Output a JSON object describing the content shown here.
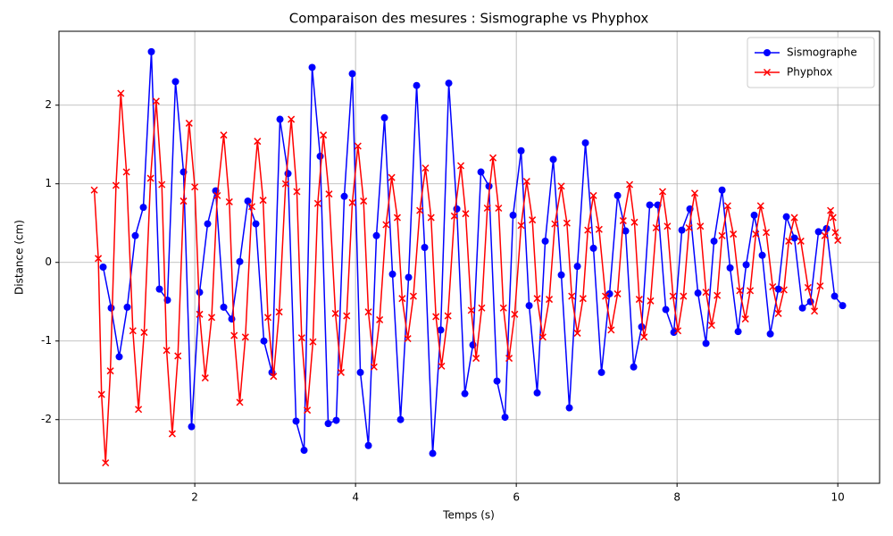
{
  "chart_data": {
    "type": "line",
    "title": "Comparaison des mesures : Sismographe vs Phyphox",
    "x_label": "Temps (s)",
    "y_label": "Distance (cm)",
    "xlim": [
      0.31,
      10.52
    ],
    "ylim": [
      -2.81,
      2.94
    ],
    "xticks": [
      2,
      4,
      6,
      8,
      10
    ],
    "yticks": [
      -2,
      -1,
      0,
      1,
      2
    ],
    "grid": true,
    "legend": "upper right",
    "series": [
      {
        "name": "Sismographe",
        "color": "#0000ff",
        "marker": "o",
        "x": [
          0.86,
          0.96,
          1.06,
          1.16,
          1.26,
          1.36,
          1.46,
          1.56,
          1.66,
          1.76,
          1.86,
          1.96,
          2.06,
          2.16,
          2.26,
          2.36,
          2.46,
          2.56,
          2.66,
          2.76,
          2.86,
          2.96,
          3.06,
          3.16,
          3.26,
          3.36,
          3.46,
          3.56,
          3.66,
          3.76,
          3.86,
          3.96,
          4.06,
          4.16,
          4.26,
          4.36,
          4.46,
          4.56,
          4.66,
          4.76,
          4.86,
          4.96,
          5.06,
          5.16,
          5.26,
          5.36,
          5.46,
          5.56,
          5.66,
          5.76,
          5.86,
          5.96,
          6.06,
          6.16,
          6.26,
          6.36,
          6.46,
          6.56,
          6.66,
          6.76,
          6.86,
          6.96,
          7.06,
          7.16,
          7.26,
          7.36,
          7.46,
          7.56,
          7.66,
          7.76,
          7.86,
          7.96,
          8.06,
          8.16,
          8.26,
          8.36,
          8.46,
          8.56,
          8.66,
          8.76,
          8.86,
          8.96,
          9.06,
          9.16,
          9.26,
          9.36,
          9.46,
          9.56,
          9.66,
          9.76,
          9.86,
          9.96,
          10.06
        ],
        "values": [
          -0.06,
          -0.58,
          -1.2,
          -0.57,
          0.34,
          0.7,
          2.68,
          -0.34,
          -0.48,
          2.3,
          1.15,
          -2.09,
          -0.38,
          0.49,
          0.91,
          -0.57,
          -0.72,
          0.01,
          0.78,
          0.49,
          -1.0,
          -1.4,
          1.82,
          1.13,
          -2.02,
          -2.39,
          2.48,
          1.35,
          -2.05,
          -2.01,
          0.84,
          2.4,
          -1.4,
          -2.33,
          0.34,
          1.84,
          -0.15,
          -2.0,
          -0.19,
          2.25,
          0.19,
          -2.43,
          -0.86,
          2.28,
          0.68,
          -1.67,
          -1.05,
          1.15,
          0.97,
          -1.51,
          -1.97,
          0.6,
          1.42,
          -0.55,
          -1.66,
          0.27,
          1.31,
          -0.16,
          -1.85,
          -0.05,
          1.52,
          0.18,
          -1.4,
          -0.4,
          0.85,
          0.4,
          -1.33,
          -0.82,
          0.73,
          0.73,
          -0.6,
          -0.89,
          0.41,
          0.68,
          -0.39,
          -1.03,
          0.27,
          0.92,
          -0.07,
          -0.88,
          -0.03,
          0.6,
          0.09,
          -0.91,
          -0.34,
          0.58,
          0.31,
          -0.58,
          -0.5,
          0.39,
          0.43,
          -0.43,
          -0.55
        ]
      },
      {
        "name": "Phyphox",
        "color": "#ff0000",
        "marker": "x",
        "x": [
          0.75,
          0.8,
          0.84,
          0.89,
          0.95,
          1.02,
          1.08,
          1.15,
          1.23,
          1.3,
          1.37,
          1.45,
          1.52,
          1.59,
          1.65,
          1.72,
          1.79,
          1.86,
          1.93,
          2.0,
          2.06,
          2.13,
          2.21,
          2.28,
          2.36,
          2.43,
          2.49,
          2.56,
          2.63,
          2.71,
          2.78,
          2.85,
          2.91,
          2.98,
          3.05,
          3.13,
          3.2,
          3.27,
          3.33,
          3.4,
          3.47,
          3.53,
          3.6,
          3.67,
          3.75,
          3.82,
          3.89,
          3.96,
          4.03,
          4.1,
          4.16,
          4.23,
          4.3,
          4.38,
          4.45,
          4.52,
          4.58,
          4.65,
          4.72,
          4.8,
          4.87,
          4.94,
          5.0,
          5.07,
          5.15,
          5.23,
          5.31,
          5.37,
          5.44,
          5.5,
          5.57,
          5.64,
          5.71,
          5.78,
          5.84,
          5.91,
          5.98,
          6.06,
          6.13,
          6.2,
          6.26,
          6.33,
          6.41,
          6.48,
          6.56,
          6.63,
          6.69,
          6.76,
          6.83,
          6.89,
          6.96,
          7.03,
          7.11,
          7.18,
          7.26,
          7.33,
          7.41,
          7.47,
          7.53,
          7.59,
          7.67,
          7.74,
          7.82,
          7.88,
          7.95,
          8.01,
          8.08,
          8.15,
          8.22,
          8.29,
          8.36,
          8.43,
          8.5,
          8.56,
          8.63,
          8.7,
          8.78,
          8.85,
          8.91,
          8.98,
          9.04,
          9.11,
          9.19,
          9.26,
          9.33,
          9.39,
          9.46,
          9.54,
          9.63,
          9.71,
          9.78,
          9.84,
          9.91,
          9.94,
          9.97,
          10.0
        ],
        "values": [
          0.92,
          0.05,
          -1.68,
          -2.55,
          -1.38,
          0.98,
          2.15,
          1.15,
          -0.87,
          -1.87,
          -0.89,
          1.07,
          2.05,
          0.99,
          -1.12,
          -2.18,
          -1.19,
          0.78,
          1.77,
          0.96,
          -0.66,
          -1.47,
          -0.7,
          0.85,
          1.62,
          0.77,
          -0.93,
          -1.78,
          -0.95,
          0.71,
          1.54,
          0.79,
          -0.7,
          -1.45,
          -0.63,
          1.0,
          1.82,
          0.9,
          -0.96,
          -1.88,
          -1.01,
          0.75,
          1.62,
          0.87,
          -0.65,
          -1.4,
          -0.68,
          0.76,
          1.48,
          0.78,
          -0.63,
          -1.33,
          -0.73,
          0.48,
          1.08,
          0.57,
          -0.46,
          -0.97,
          -0.43,
          0.66,
          1.2,
          0.57,
          -0.69,
          -1.32,
          -0.68,
          0.59,
          1.23,
          0.62,
          -0.61,
          -1.22,
          -0.58,
          0.69,
          1.33,
          0.69,
          -0.58,
          -1.22,
          -0.66,
          0.47,
          1.03,
          0.54,
          -0.46,
          -0.95,
          -0.47,
          0.49,
          0.97,
          0.5,
          -0.43,
          -0.9,
          -0.46,
          0.41,
          0.85,
          0.42,
          -0.43,
          -0.86,
          -0.4,
          0.53,
          0.99,
          0.51,
          -0.47,
          -0.95,
          -0.49,
          0.44,
          0.9,
          0.46,
          -0.43,
          -0.87,
          -0.43,
          0.44,
          0.88,
          0.46,
          -0.38,
          -0.8,
          -0.42,
          0.34,
          0.72,
          0.36,
          -0.36,
          -0.72,
          -0.36,
          0.36,
          0.72,
          0.38,
          -0.31,
          -0.65,
          -0.35,
          0.27,
          0.57,
          0.27,
          -0.32,
          -0.62,
          -0.3,
          0.34,
          0.66,
          0.57,
          0.38,
          0.28
        ]
      }
    ]
  }
}
